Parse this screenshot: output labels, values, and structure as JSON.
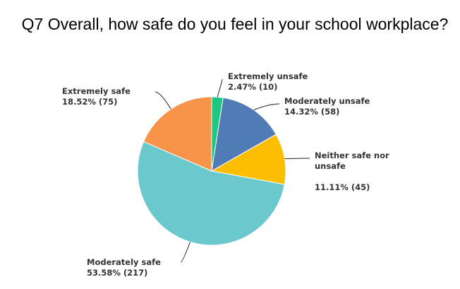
{
  "chart_data": {
    "type": "pie",
    "title": "Q7 Overall, how safe do you feel in your school workplace?",
    "start_angle_deg": 0,
    "direction": "clockwise",
    "slices": [
      {
        "name": "Extremely unsafe",
        "label_lines": [
          "Extremely unsafe",
          "2.47% (10)"
        ],
        "percent": 2.47,
        "count": 10,
        "color": "#1ec77f"
      },
      {
        "name": "Moderately unsafe",
        "label_lines": [
          "Moderately unsafe",
          "14.32% (58)"
        ],
        "percent": 14.32,
        "count": 58,
        "color": "#507cb6"
      },
      {
        "name": "Neither safe nor unsafe",
        "label_lines": [
          "Neither safe nor",
          "unsafe",
          "",
          "11.11% (45)"
        ],
        "percent": 11.11,
        "count": 45,
        "color": "#fdbd00"
      },
      {
        "name": "Moderately safe",
        "label_lines": [
          "Moderately safe",
          "53.58% (217)"
        ],
        "percent": 53.58,
        "count": 217,
        "color": "#6bc8cd"
      },
      {
        "name": "Extremely safe",
        "label_lines": [
          "Extremely safe",
          "18.52% (75)"
        ],
        "percent": 18.52,
        "count": 75,
        "color": "#f79449"
      }
    ]
  }
}
